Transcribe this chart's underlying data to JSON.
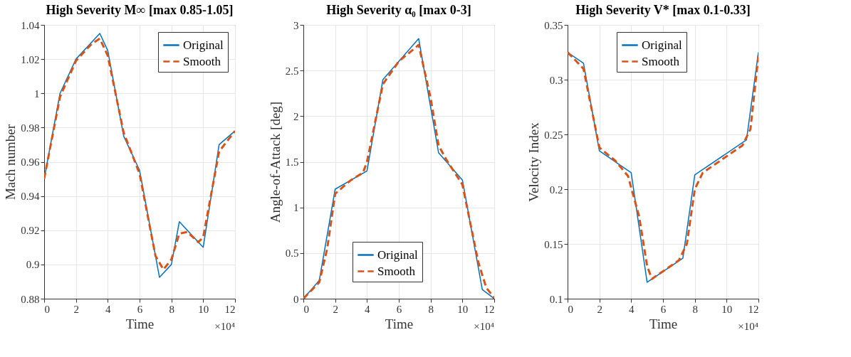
{
  "chart_data": [
    {
      "type": "line",
      "title": "High Severity M∞ [max 0.85-1.05]",
      "xlabel": "Time",
      "ylabel": "Mach number",
      "annotations": [
        "×10⁴"
      ],
      "xlim": [
        0,
        12
      ],
      "xticks": [
        0,
        2,
        4,
        6,
        8,
        10,
        12
      ],
      "ylim": [
        0.88,
        1.04
      ],
      "yticks": [
        0.88,
        0.9,
        0.92,
        0.94,
        0.96,
        0.98,
        1,
        1.02,
        1.04
      ],
      "grid": true,
      "legend": "top right",
      "series": [
        {
          "name": "Original",
          "color": "#0072bd",
          "line_style": "solid",
          "x": [
            0,
            1,
            2,
            3.5,
            4,
            5,
            6,
            7.25,
            8,
            8.5,
            10,
            11,
            12
          ],
          "values": [
            0.95,
            1.0,
            1.02,
            1.035,
            1.025,
            0.975,
            0.955,
            0.8925,
            0.9,
            0.925,
            0.91,
            0.97,
            0.978
          ]
        },
        {
          "name": "Smooth",
          "color": "#d95319",
          "line_style": "dashed",
          "x": [
            0,
            1,
            2,
            3,
            3.5,
            4,
            5,
            6,
            7,
            7.5,
            8,
            8.5,
            9,
            9.7,
            10,
            11,
            12
          ],
          "values": [
            0.95,
            0.998,
            1.019,
            1.029,
            1.032,
            1.022,
            0.977,
            0.953,
            0.905,
            0.897,
            0.903,
            0.918,
            0.919,
            0.913,
            0.916,
            0.966,
            0.978
          ]
        }
      ]
    },
    {
      "type": "line",
      "title": "High Severity α₀ [max 0-3]",
      "xlabel": "Time",
      "ylabel": "Angle-of-Attack [deg]",
      "annotations": [
        "×10⁴"
      ],
      "xlim": [
        0,
        12
      ],
      "xticks": [
        0,
        2,
        4,
        6,
        8,
        10,
        12
      ],
      "ylim": [
        0,
        3
      ],
      "yticks": [
        0,
        0.5,
        1,
        1.5,
        2,
        2.5,
        3
      ],
      "grid": true,
      "legend": "bottom",
      "series": [
        {
          "name": "Original",
          "color": "#0072bd",
          "line_style": "solid",
          "x": [
            0,
            0.5,
            1,
            2,
            4,
            5,
            7.25,
            8.5,
            10,
            11.25,
            12
          ],
          "values": [
            0,
            0.1,
            0.2,
            1.2,
            1.4,
            2.4,
            2.85,
            1.6,
            1.3,
            0.1,
            0
          ]
        },
        {
          "name": "Smooth",
          "color": "#d95319",
          "line_style": "dashed",
          "x": [
            0,
            1,
            1.5,
            2,
            3,
            3.75,
            4,
            5,
            6,
            7.25,
            8,
            8.5,
            9,
            10,
            11,
            11.5,
            12
          ],
          "values": [
            0,
            0.18,
            0.55,
            1.15,
            1.3,
            1.38,
            1.5,
            2.35,
            2.6,
            2.78,
            2.2,
            1.68,
            1.52,
            1.25,
            0.4,
            0.12,
            0.01
          ]
        }
      ]
    },
    {
      "type": "line",
      "title": "High Severity V* [max 0.1-0.33]",
      "xlabel": "Time",
      "ylabel": "Velocity Index",
      "annotations": [
        "×10⁴"
      ],
      "xlim": [
        0,
        12
      ],
      "xticks": [
        0,
        2,
        4,
        6,
        8,
        10,
        12
      ],
      "ylim": [
        0.1,
        0.35
      ],
      "yticks": [
        0.1,
        0.15,
        0.2,
        0.25,
        0.3,
        0.35
      ],
      "grid": true,
      "legend": "top",
      "series": [
        {
          "name": "Original",
          "color": "#0072bd",
          "line_style": "solid",
          "x": [
            0,
            1,
            2,
            4,
            5,
            7.25,
            8,
            11.25,
            12
          ],
          "values": [
            0.325,
            0.315,
            0.235,
            0.215,
            0.115,
            0.137,
            0.213,
            0.245,
            0.325
          ]
        },
        {
          "name": "Smooth",
          "color": "#d95319",
          "line_style": "dashed",
          "x": [
            0,
            1,
            2,
            3,
            3.8,
            4.5,
            5,
            5.3,
            6,
            7,
            7.5,
            8,
            8.5,
            10,
            11,
            11.5,
            12
          ],
          "values": [
            0.325,
            0.31,
            0.238,
            0.226,
            0.212,
            0.175,
            0.13,
            0.118,
            0.125,
            0.135,
            0.15,
            0.2,
            0.215,
            0.23,
            0.24,
            0.255,
            0.322
          ]
        }
      ]
    }
  ]
}
